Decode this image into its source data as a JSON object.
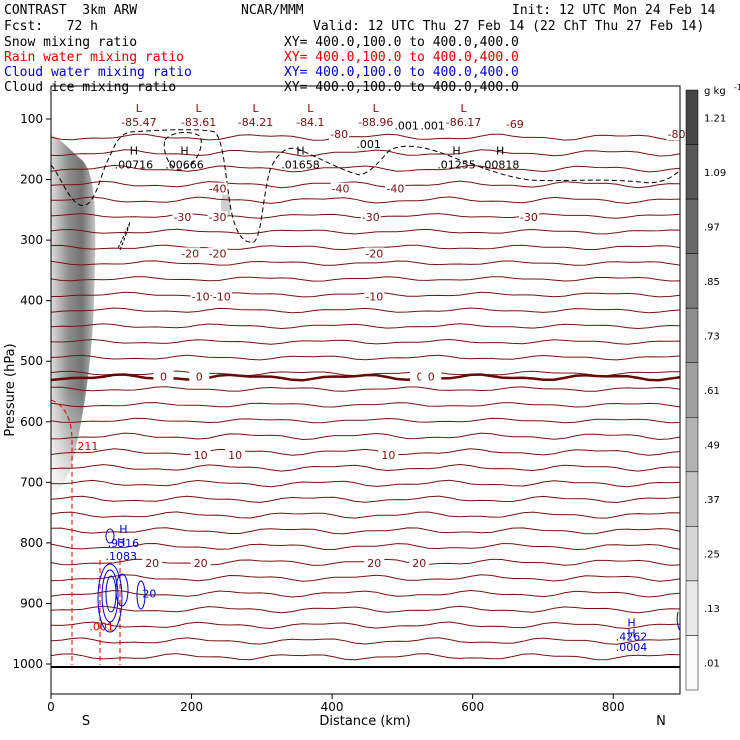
{
  "header": {
    "model": "CONTRAST  3km ARW",
    "center": "NCAR/MMM",
    "init": "Init: 12 UTC Mon 24 Feb 14",
    "fcst": "Fcst:   72 h",
    "valid": "Valid: 12 UTC Thu 27 Feb 14 (22 ChT Thu 27 Feb 14)"
  },
  "fields": [
    {
      "name": "Snow mixing ratio",
      "xy": "XY= 400.0,100.0 to 400.0,400.0",
      "color": "#000000"
    },
    {
      "name": "Rain water mixing ratio",
      "xy": "XY= 400.0,100.0 to 400.0,400.0",
      "color": "#e00000"
    },
    {
      "name": "Cloud water mixing ratio",
      "xy": "XY= 400.0,100.0 to 400.0,400.0",
      "color": "#0000cc"
    },
    {
      "name": "Cloud ice mixing ratio",
      "xy": "XY= 400.0,100.0 to 400.0,400.0",
      "color": "#000000"
    }
  ],
  "colorbar": {
    "unit": "g kg",
    "unit_exp": "-1",
    "ticks": [
      "1.21",
      "1.09",
      ".97",
      ".85",
      ".73",
      ".61",
      ".49",
      ".37",
      ".25",
      ".13",
      ".01"
    ]
  },
  "chart_data": {
    "type": "contour-cross-section",
    "xlabel": "Distance (km)",
    "ylabel": "Pressure (hPa)",
    "x_ticks": [
      0,
      200,
      400,
      600,
      800
    ],
    "xlim": [
      0,
      895
    ],
    "y_ticks": [
      100,
      200,
      300,
      400,
      500,
      600,
      700,
      800,
      900,
      1000
    ],
    "ylim": [
      1050,
      50
    ],
    "x_end_labels": {
      "left": "S",
      "right": "N"
    },
    "temperature_contours": [
      {
        "label": "-80",
        "p": 125,
        "labels_at": [
          [
            410,
            "-80"
          ],
          [
            890,
            "-80"
          ]
        ]
      },
      {
        "label": "-69",
        "p": 108,
        "labels_at": [
          [
            660,
            "-69"
          ]
        ]
      },
      {
        "label": "-40",
        "p": 215,
        "labels_at": [
          [
            237,
            "-40"
          ],
          [
            412,
            "-40"
          ],
          [
            490,
            "-40"
          ]
        ]
      },
      {
        "label": "-30",
        "p": 262,
        "labels_at": [
          [
            187,
            "-30"
          ],
          [
            237,
            "-30"
          ],
          [
            455,
            "-30"
          ],
          [
            680,
            "-30"
          ]
        ]
      },
      {
        "label": "-20",
        "p": 322,
        "labels_at": [
          [
            198,
            "-20"
          ],
          [
            237,
            "-20"
          ],
          [
            460,
            "-20"
          ]
        ]
      },
      {
        "label": "-10",
        "p": 393,
        "labels_at": [
          [
            213,
            "-10"
          ],
          [
            243,
            "-10"
          ],
          [
            460,
            "-10"
          ]
        ]
      },
      {
        "label": "0",
        "p": 525,
        "labels_at": [
          [
            160,
            "0"
          ],
          [
            211,
            "0"
          ],
          [
            525,
            "0"
          ],
          [
            541,
            "0"
          ]
        ]
      },
      {
        "label": "10",
        "p": 655,
        "labels_at": [
          [
            213,
            "10"
          ],
          [
            262,
            "10"
          ],
          [
            480,
            "10"
          ]
        ]
      },
      {
        "label": "20",
        "p": 833,
        "labels_at": [
          [
            144,
            "20"
          ],
          [
            213,
            "20"
          ],
          [
            460,
            "20"
          ],
          [
            524,
            "20"
          ]
        ]
      }
    ],
    "lows": [
      {
        "label": "L",
        "value": "-85.47",
        "x": 125,
        "p": 95
      },
      {
        "label": "L",
        "value": "-83.61",
        "x": 210,
        "p": 95
      },
      {
        "label": "L",
        "value": "-84.21",
        "x": 291,
        "p": 95
      },
      {
        "label": "L",
        "value": "-84.1",
        "x": 369,
        "p": 95
      },
      {
        "label": "L",
        "value": "-88.96",
        "x": 462,
        "p": 95
      },
      {
        "label": "L",
        "value": "-86.17",
        "x": 587,
        "p": 95
      }
    ],
    "highs": [
      {
        "label": "H",
        "value": ".00716",
        "x": 118,
        "p": 165
      },
      {
        "label": "H",
        "value": ".00666",
        "x": 190,
        "p": 165
      },
      {
        "label": "H",
        "value": ".01658",
        "x": 355,
        "p": 165
      },
      {
        "label": "H",
        "value": ".01255",
        "x": 577,
        "p": 165
      },
      {
        "label": "H",
        "value": ".00818",
        "x": 639,
        "p": 165
      },
      {
        "label": "H",
        "value": ".9316",
        "x": 103,
        "p": 790
      },
      {
        "label": "H",
        "value": ".1083",
        "x": 100,
        "p": 812
      },
      {
        "label": "H",
        "value": ".4262",
        "x": 826,
        "p": 945
      },
      {
        "label": "H",
        "value": ".0004",
        "x": 826,
        "p": 962
      }
    ],
    "small_labels": [
      {
        "text": ".001",
        "x": 452,
        "p": 148
      },
      {
        "text": ".001",
        "x": 506,
        "p": 117
      },
      {
        "text": ".001",
        "x": 543,
        "p": 117
      },
      {
        "text": ".001",
        "x": 72,
        "p": 945
      },
      {
        "text": ".211",
        "x": 50,
        "p": 647
      },
      {
        "text": "20",
        "x": 140,
        "p": 890
      }
    ]
  }
}
